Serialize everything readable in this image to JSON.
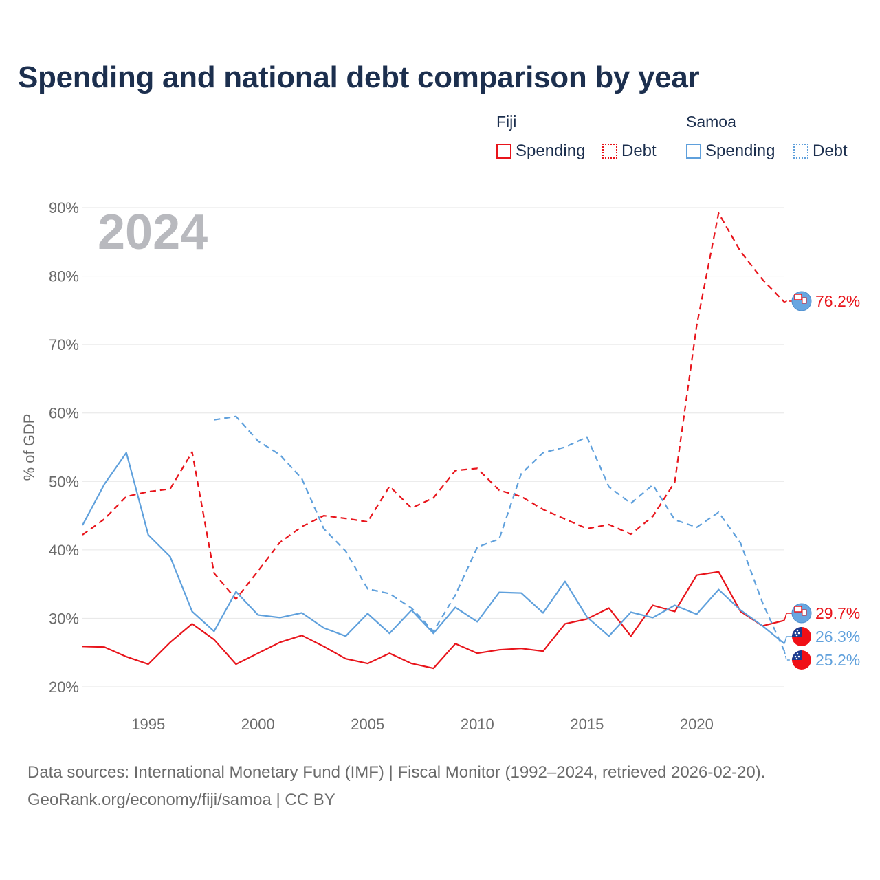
{
  "title": "Spending and national debt comparison by year",
  "legend": {
    "groups": [
      {
        "name": "Fiji",
        "color": "#e8141b",
        "items": [
          {
            "label": "Spending",
            "style": "solid"
          },
          {
            "label": "Debt",
            "style": "dotted"
          }
        ]
      },
      {
        "name": "Samoa",
        "color": "#5fa0dc",
        "items": [
          {
            "label": "Spending",
            "style": "solid"
          },
          {
            "label": "Debt",
            "style": "dotted"
          }
        ]
      }
    ]
  },
  "footer": {
    "line1": "Data sources: International Monetary Fund (IMF) | Fiscal Monitor (1992–2024, retrieved 2026-02-20).",
    "line2": "GeoRank.org/economy/fiji/samoa | CC BY"
  },
  "chart_data": {
    "type": "line",
    "title": "Spending and national debt comparison by year",
    "ylabel": "% of GDP",
    "xlabel": "",
    "year_watermark": "2024",
    "xlim": [
      1992,
      2024
    ],
    "ylim": [
      20,
      90
    ],
    "x_ticks": [
      1995,
      2000,
      2005,
      2010,
      2015,
      2020
    ],
    "y_ticks": [
      20,
      30,
      40,
      50,
      60,
      70,
      80,
      90
    ],
    "y_tick_labels": [
      "20%",
      "30%",
      "40%",
      "50%",
      "60%",
      "70%",
      "80%",
      "90%"
    ],
    "grid": true,
    "series": [
      {
        "name": "Fiji Spending",
        "country": "Fiji",
        "metric": "Spending",
        "color": "#e8141b",
        "dash": "solid",
        "x": [
          1992,
          1993,
          1994,
          1995,
          1996,
          1997,
          1998,
          1999,
          2000,
          2001,
          2002,
          2003,
          2004,
          2005,
          2006,
          2007,
          2008,
          2009,
          2010,
          2011,
          2012,
          2013,
          2014,
          2015,
          2016,
          2017,
          2018,
          2019,
          2020,
          2021,
          2022,
          2023,
          2024
        ],
        "y": [
          25.9,
          25.8,
          24.4,
          23.3,
          26.5,
          29.2,
          26.9,
          23.3,
          24.9,
          26.5,
          27.5,
          25.9,
          24.1,
          23.4,
          24.9,
          23.4,
          22.7,
          26.3,
          24.9,
          25.4,
          25.6,
          25.2,
          29.2,
          29.9,
          31.5,
          27.4,
          31.9,
          31.0,
          36.3,
          36.8,
          31.0,
          28.9,
          29.7
        ],
        "end_label": "29.7%"
      },
      {
        "name": "Fiji Debt",
        "country": "Fiji",
        "metric": "Debt",
        "color": "#e8141b",
        "dash": "dashed",
        "x": [
          1992,
          1993,
          1994,
          1995,
          1996,
          1997,
          1998,
          1999,
          2000,
          2001,
          2002,
          2003,
          2004,
          2005,
          2006,
          2007,
          2008,
          2009,
          2010,
          2011,
          2012,
          2013,
          2014,
          2015,
          2016,
          2017,
          2018,
          2019,
          2020,
          2021,
          2022,
          2023,
          2024
        ],
        "y": [
          42.2,
          44.5,
          47.8,
          48.5,
          48.9,
          54.3,
          36.6,
          32.8,
          36.9,
          41.1,
          43.4,
          45.0,
          44.6,
          44.1,
          49.3,
          46.1,
          47.6,
          51.6,
          51.9,
          48.7,
          47.8,
          45.9,
          44.5,
          43.1,
          43.7,
          42.3,
          44.9,
          49.9,
          72.8,
          89.2,
          83.6,
          79.5,
          76.2
        ],
        "end_label": "76.2%"
      },
      {
        "name": "Samoa Spending",
        "country": "Samoa",
        "metric": "Spending",
        "color": "#5fa0dc",
        "dash": "solid",
        "x": [
          1992,
          1993,
          1994,
          1995,
          1996,
          1997,
          1998,
          1999,
          2000,
          2001,
          2002,
          2003,
          2004,
          2005,
          2006,
          2007,
          2008,
          2009,
          2010,
          2011,
          2012,
          2013,
          2014,
          2015,
          2016,
          2017,
          2018,
          2019,
          2020,
          2021,
          2022,
          2023,
          2024
        ],
        "y": [
          43.6,
          49.6,
          54.2,
          42.2,
          39.0,
          31.0,
          28.1,
          33.9,
          30.5,
          30.1,
          30.8,
          28.6,
          27.4,
          30.7,
          27.8,
          31.2,
          27.8,
          31.6,
          29.5,
          33.8,
          33.7,
          30.8,
          35.4,
          30.2,
          27.4,
          30.9,
          30.1,
          31.9,
          30.6,
          34.2,
          31.2,
          28.9,
          26.3
        ],
        "end_label": "26.3%"
      },
      {
        "name": "Samoa Debt",
        "country": "Samoa",
        "metric": "Debt",
        "color": "#5fa0dc",
        "dash": "dashed",
        "x": [
          1998,
          1999,
          2000,
          2001,
          2002,
          2003,
          2004,
          2005,
          2006,
          2007,
          2008,
          2009,
          2010,
          2011,
          2012,
          2013,
          2014,
          2015,
          2016,
          2017,
          2018,
          2019,
          2020,
          2021,
          2022,
          2023,
          2024
        ],
        "y": [
          59.0,
          59.5,
          55.9,
          53.9,
          50.4,
          43.1,
          39.8,
          34.3,
          33.6,
          31.5,
          28.1,
          33.4,
          40.4,
          41.6,
          51.1,
          54.2,
          55.0,
          56.5,
          49.2,
          46.8,
          49.5,
          44.4,
          43.3,
          45.5,
          41.0,
          32.3,
          25.2
        ],
        "end_label": "25.2%"
      }
    ]
  }
}
